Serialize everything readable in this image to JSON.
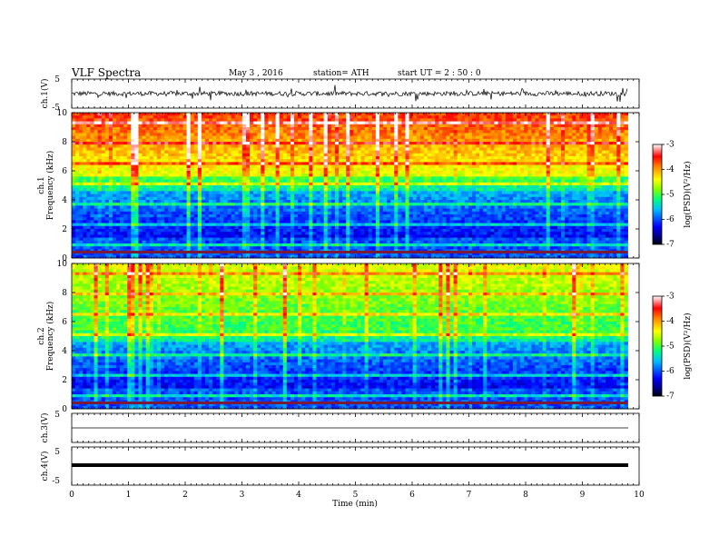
{
  "header": {
    "title": "VLF  Spectra",
    "date": "May 3  , 2016",
    "station": "station= ATH",
    "start": "start  UT  =   2  : 50 : 0"
  },
  "chart_data": [
    {
      "type": "line",
      "panel": "ch1-waveform",
      "ylabel": "ch.1(V)",
      "ylim": [
        -5,
        5
      ],
      "yticks": [
        "5",
        "-5"
      ],
      "xlim": [
        0,
        10
      ],
      "color": "#000000",
      "description_values": {
        "baseline": 0,
        "noise_amplitude": 0.8,
        "spike_max": 2.5
      }
    },
    {
      "type": "heatmap",
      "panel": "ch1-spectrogram",
      "ylabel": "Frequency  (kHz)",
      "channel_label": "ch.1",
      "ylim": [
        0,
        10
      ],
      "yticks": [
        "0",
        "2",
        "4",
        "6",
        "8",
        "10"
      ],
      "xlim": [
        0,
        10
      ],
      "colorbar": {
        "label": "log(PSD)(V²/Hz)",
        "ticks": [
          "-3",
          "-4",
          "-5",
          "-6",
          "-7"
        ],
        "range": [
          -7,
          -3
        ]
      }
    },
    {
      "type": "heatmap",
      "panel": "ch2-spectrogram",
      "ylabel": "Frequency  (kHz)",
      "channel_label": "ch.2",
      "ylim": [
        0,
        10
      ],
      "yticks": [
        "0",
        "2",
        "4",
        "6",
        "8",
        "10"
      ],
      "xlim": [
        0,
        10
      ],
      "colorbar": {
        "label": "log(PSD)(V²/Hz)",
        "ticks": [
          "-3",
          "-4",
          "-5",
          "-6",
          "-7"
        ],
        "range": [
          -7,
          -3
        ]
      }
    },
    {
      "type": "line",
      "panel": "ch3-waveform",
      "ylabel": "ch.3(V)",
      "ylim": [
        -5,
        5
      ],
      "yticks": [
        "5"
      ],
      "xlim": [
        0,
        10
      ],
      "color": "#000000"
    },
    {
      "type": "line",
      "panel": "ch4-waveform",
      "ylabel": "ch.4(V)",
      "ylim": [
        -5,
        5
      ],
      "yticks": [
        "5",
        "-5"
      ],
      "xlim": [
        0,
        10
      ],
      "color": "#000000"
    }
  ],
  "xaxis": {
    "label": "Time  (min)",
    "ticks": [
      "0",
      "1",
      "2",
      "3",
      "4",
      "5",
      "6",
      "7",
      "8",
      "9",
      "10"
    ],
    "range": [
      0,
      10
    ],
    "data_end": 9.8
  }
}
